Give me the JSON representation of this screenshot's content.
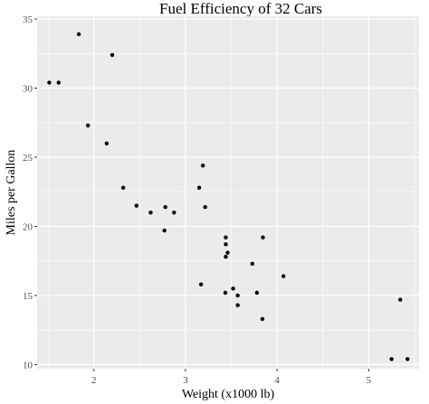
{
  "chart_data": {
    "type": "scatter",
    "title": "Fuel Efficiency of 32 Cars",
    "xlabel": "Weight (x1000 lb)",
    "ylabel": "Miles per Gallon",
    "xlim": [
      1.38,
      5.55
    ],
    "ylim": [
      9.7,
      35.2
    ],
    "x_ticks": [
      2,
      3,
      4,
      5
    ],
    "y_ticks": [
      10,
      15,
      20,
      25,
      30,
      35
    ],
    "grid": true,
    "legend": "none",
    "colors": {
      "panel": "#ebebeb",
      "grid_major": "#ffffff",
      "point": "#000000",
      "tick_text": "#4d4d4d"
    },
    "points": [
      {
        "x": 2.62,
        "y": 21.0
      },
      {
        "x": 2.875,
        "y": 21.0
      },
      {
        "x": 2.32,
        "y": 22.8
      },
      {
        "x": 3.215,
        "y": 21.4
      },
      {
        "x": 3.44,
        "y": 18.7
      },
      {
        "x": 3.46,
        "y": 18.1
      },
      {
        "x": 3.57,
        "y": 14.3
      },
      {
        "x": 3.19,
        "y": 24.4
      },
      {
        "x": 3.15,
        "y": 22.8
      },
      {
        "x": 3.44,
        "y": 19.2
      },
      {
        "x": 3.44,
        "y": 17.8
      },
      {
        "x": 4.07,
        "y": 16.4
      },
      {
        "x": 3.73,
        "y": 17.3
      },
      {
        "x": 3.78,
        "y": 15.2
      },
      {
        "x": 5.25,
        "y": 10.4
      },
      {
        "x": 5.424,
        "y": 10.4
      },
      {
        "x": 5.345,
        "y": 14.7
      },
      {
        "x": 2.2,
        "y": 32.4
      },
      {
        "x": 1.615,
        "y": 30.4
      },
      {
        "x": 1.835,
        "y": 33.9
      },
      {
        "x": 2.465,
        "y": 21.5
      },
      {
        "x": 3.52,
        "y": 15.5
      },
      {
        "x": 3.435,
        "y": 15.2
      },
      {
        "x": 3.84,
        "y": 13.3
      },
      {
        "x": 3.845,
        "y": 19.2
      },
      {
        "x": 1.935,
        "y": 27.3
      },
      {
        "x": 2.14,
        "y": 26.0
      },
      {
        "x": 1.513,
        "y": 30.4
      },
      {
        "x": 3.17,
        "y": 15.8
      },
      {
        "x": 2.77,
        "y": 19.7
      },
      {
        "x": 3.57,
        "y": 15.0
      },
      {
        "x": 2.78,
        "y": 21.4
      }
    ]
  }
}
